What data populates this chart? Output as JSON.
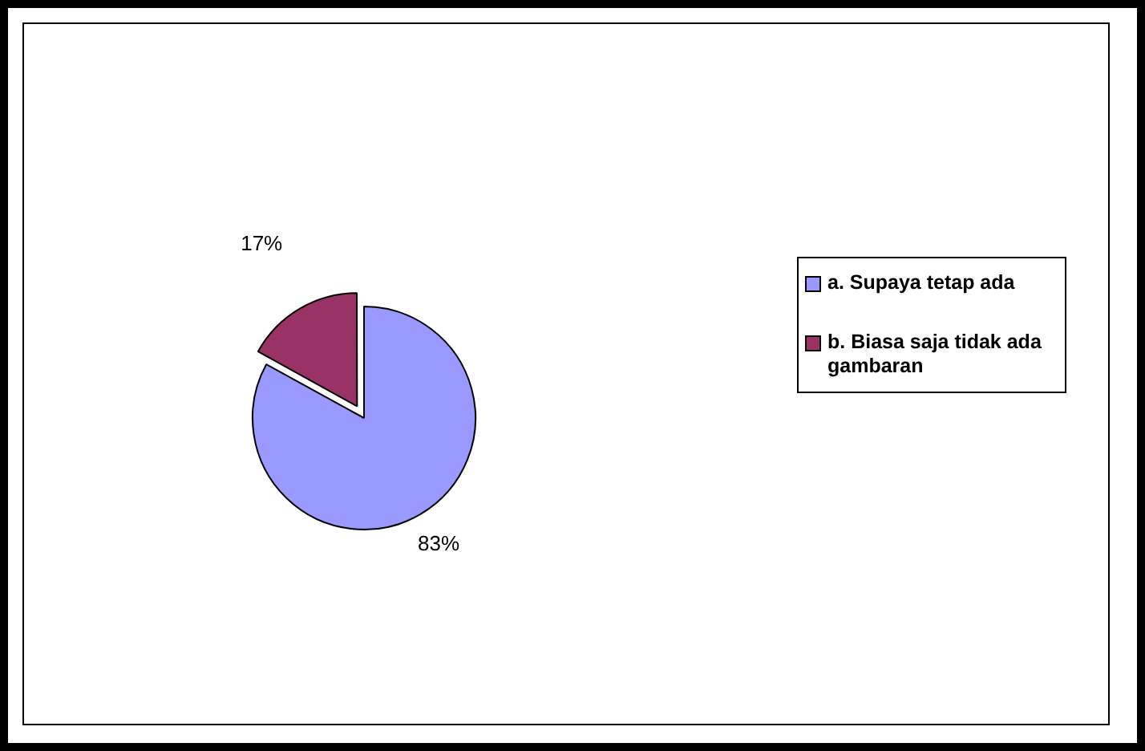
{
  "chart_data": {
    "type": "pie",
    "categories": [
      "a. Supaya tetap ada",
      "b. Biasa saja tidak ada gambaran"
    ],
    "values": [
      83,
      17
    ],
    "colors": [
      "#9999ff",
      "#993366"
    ],
    "value_labels": [
      "83%",
      "17%"
    ],
    "legend": "right"
  }
}
